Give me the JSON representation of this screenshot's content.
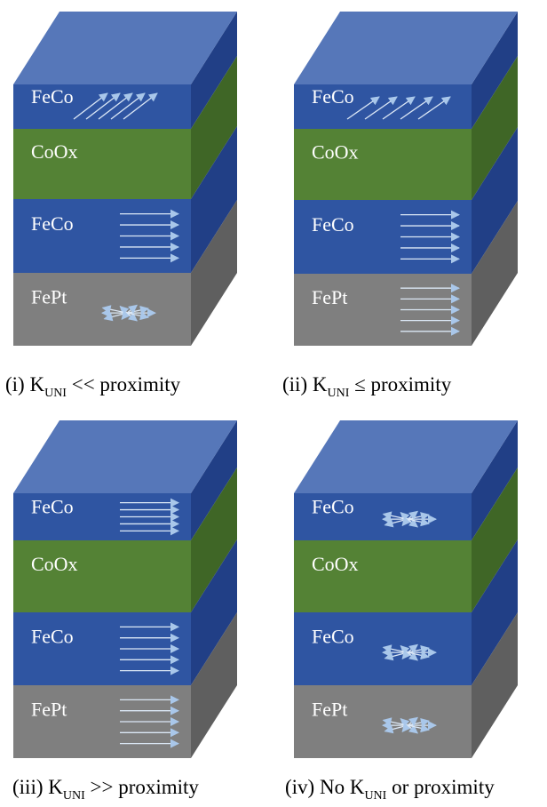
{
  "colors": {
    "ferromagnet_front": "#2f55a2",
    "ferromagnet_side": "#213f86",
    "ferromagnet_top": "#5677b9",
    "oxide_front": "#548235",
    "oxide_side": "#3f6626",
    "substrate_front": "#7f7f7f",
    "substrate_side": "#5f5f5f",
    "arrow": "#dce8f6",
    "arrow_head": "#a9c7ea"
  },
  "panels": [
    {
      "id": "i",
      "caption": {
        "prefix": "(i) K",
        "subscript": "UNI",
        "suffix": " << proximity"
      },
      "layers": [
        {
          "label": "FeCo",
          "material": "ferromagnet",
          "arrows": "diagonal"
        },
        {
          "label": "CoOx",
          "material": "oxide",
          "arrows": "none"
        },
        {
          "label": "FeCo",
          "material": "ferromagnet",
          "arrows": "aligned"
        },
        {
          "label": "FePt",
          "material": "substrate",
          "arrows": "random"
        }
      ]
    },
    {
      "id": "ii",
      "caption": {
        "prefix": "(ii) K",
        "subscript": "UNI",
        "suffix": " ≤ proximity"
      },
      "layers": [
        {
          "label": "FeCo",
          "material": "ferromagnet",
          "arrows": "canted"
        },
        {
          "label": "CoOx",
          "material": "oxide",
          "arrows": "none"
        },
        {
          "label": "FeCo",
          "material": "ferromagnet",
          "arrows": "aligned"
        },
        {
          "label": "FePt",
          "material": "substrate",
          "arrows": "aligned"
        }
      ]
    },
    {
      "id": "iii",
      "caption": {
        "prefix": "(iii) K",
        "subscript": "UNI",
        "suffix": " >> proximity"
      },
      "layers": [
        {
          "label": "FeCo",
          "material": "ferromagnet",
          "arrows": "aligned"
        },
        {
          "label": "CoOx",
          "material": "oxide",
          "arrows": "none"
        },
        {
          "label": "FeCo",
          "material": "ferromagnet",
          "arrows": "aligned"
        },
        {
          "label": "FePt",
          "material": "substrate",
          "arrows": "aligned"
        }
      ]
    },
    {
      "id": "iv",
      "caption": {
        "prefix": "(iv) No K",
        "subscript": "UNI",
        "suffix": " or proximity"
      },
      "layers": [
        {
          "label": "FeCo",
          "material": "ferromagnet",
          "arrows": "random"
        },
        {
          "label": "CoOx",
          "material": "oxide",
          "arrows": "none"
        },
        {
          "label": "FeCo",
          "material": "ferromagnet",
          "arrows": "random"
        },
        {
          "label": "FePt",
          "material": "substrate",
          "arrows": "random"
        }
      ]
    }
  ]
}
